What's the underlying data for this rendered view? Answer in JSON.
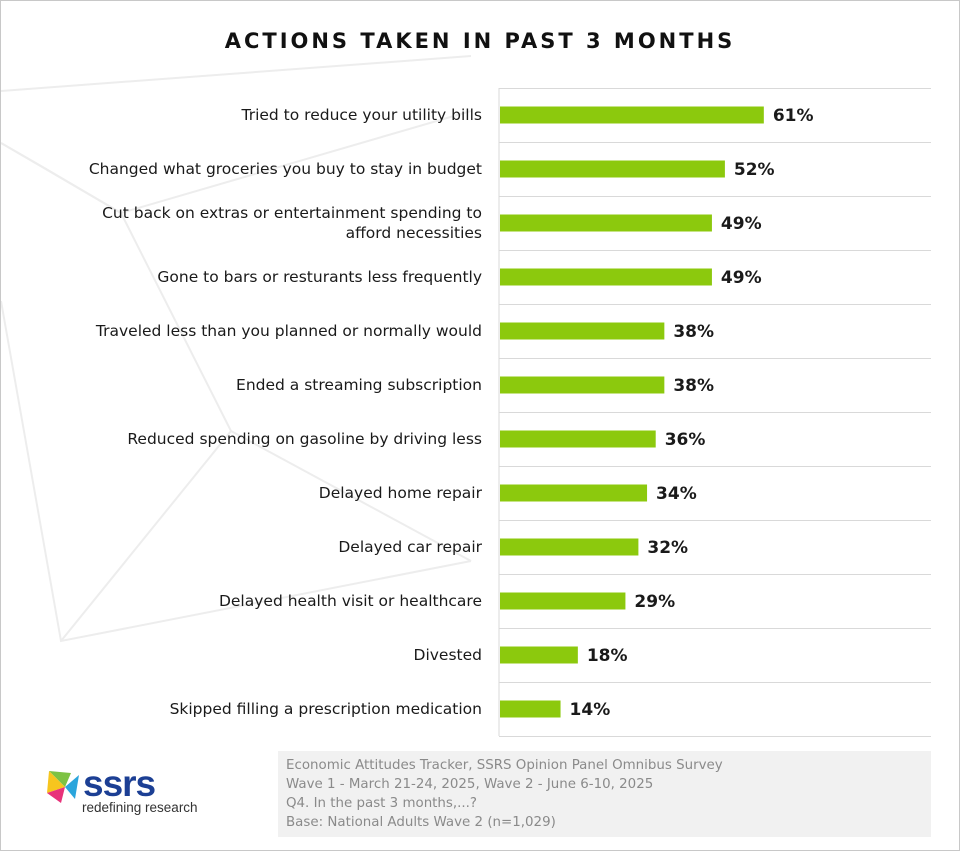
{
  "title": "ACTIONS TAKEN IN PAST 3 MONTHS",
  "chart_data": {
    "type": "bar",
    "orientation": "horizontal",
    "categories": [
      [
        "Tried to reduce your utility bills"
      ],
      [
        "Changed what groceries you buy to stay in budget"
      ],
      [
        "Cut back on extras or entertainment spending to",
        "afford necessities"
      ],
      [
        "Gone to bars or resturants less frequently"
      ],
      [
        "Traveled less than you planned or normally would"
      ],
      [
        "Ended a streaming subscription"
      ],
      [
        "Reduced spending on gasoline by driving less"
      ],
      [
        "Delayed home repair"
      ],
      [
        "Delayed car repair"
      ],
      [
        "Delayed health visit or healthcare"
      ],
      [
        "Divested"
      ],
      [
        "Skipped filling a prescription medication"
      ]
    ],
    "values": [
      61,
      52,
      49,
      49,
      38,
      38,
      36,
      34,
      32,
      29,
      18,
      14
    ],
    "value_labels": [
      "61%",
      "52%",
      "49%",
      "49%",
      "38%",
      "38%",
      "36%",
      "34%",
      "32%",
      "29%",
      "18%",
      "14%"
    ],
    "unit": "%",
    "xlim": [
      0,
      100
    ],
    "bar_color": "#8cc90d",
    "gridlines": "horizontal separators between rows",
    "legend": "none"
  },
  "notes": [
    "Economic Attitudes Tracker, SSRS Opinion Panel Omnibus Survey",
    "Wave 1 - March 21-24, 2025, Wave 2 - June 6-10, 2025",
    "Q4. In the past 3 months,...?",
    "Base: National Adults Wave 2 (n=1,029)"
  ],
  "logo": {
    "word": "ssrs",
    "tagline": "redefining research",
    "colors": [
      "#2aa5dc",
      "#e8327a",
      "#f7c51e",
      "#7dc243",
      "#1c3f94"
    ]
  }
}
